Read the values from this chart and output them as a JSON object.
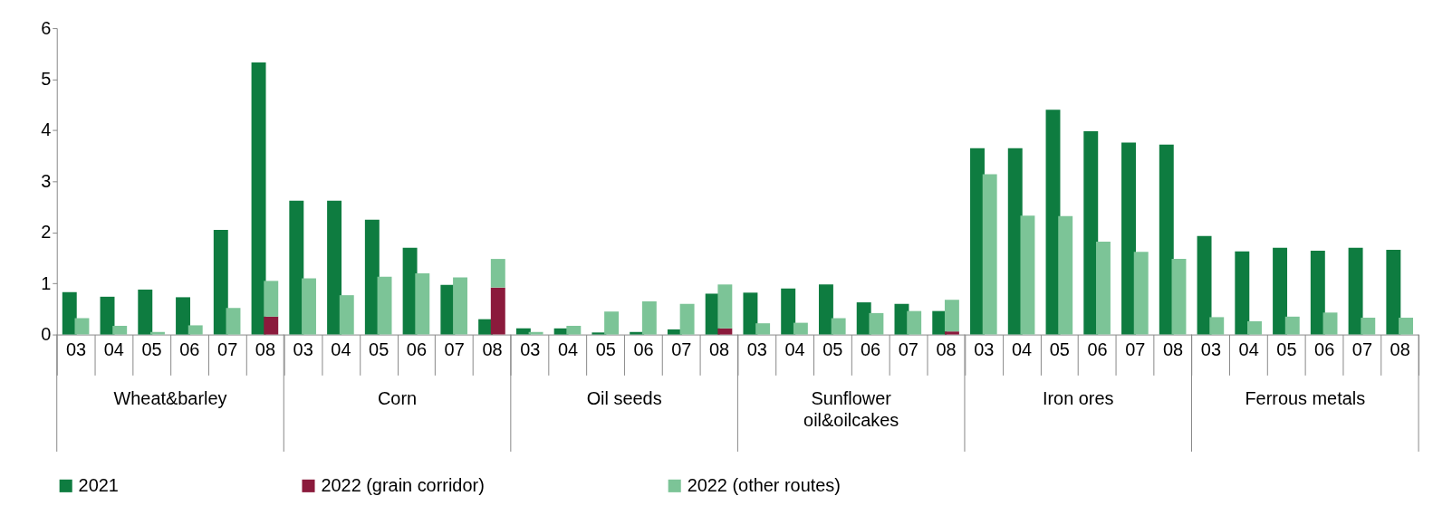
{
  "chart_data": {
    "type": "bar",
    "categories": [
      "03",
      "04",
      "05",
      "06",
      "07",
      "08",
      "03",
      "04",
      "05",
      "06",
      "07",
      "08",
      "03",
      "04",
      "05",
      "06",
      "07",
      "08",
      "03",
      "04",
      "05",
      "06",
      "07",
      "08",
      "03",
      "04",
      "05",
      "06",
      "07",
      "08",
      "03",
      "04",
      "05",
      "06",
      "07",
      "08"
    ],
    "annotations": [
      "Wheat&barley",
      "Corn",
      "Oil seeds",
      "Sunflower oil&oilcakes",
      "Iron ores",
      "Ferrous metals"
    ],
    "series": [
      {
        "name": "2021",
        "color": "#0e7c40",
        "values": [
          0.83,
          0.74,
          0.88,
          0.73,
          2.05,
          5.33,
          2.62,
          2.62,
          2.25,
          1.7,
          0.97,
          0.3,
          0.12,
          0.12,
          0.04,
          0.05,
          0.1,
          0.8,
          0.82,
          0.9,
          0.98,
          0.63,
          0.6,
          0.46,
          3.65,
          3.65,
          4.4,
          3.98,
          3.76,
          3.72,
          1.93,
          1.63,
          1.7,
          1.64,
          1.7,
          1.66
        ]
      },
      {
        "name": "2022 (grain corridor)",
        "color": "#8b1a3c",
        "values": [
          null,
          null,
          null,
          null,
          null,
          0.35,
          null,
          null,
          null,
          null,
          null,
          0.92,
          null,
          null,
          null,
          null,
          null,
          0.12,
          null,
          null,
          null,
          null,
          null,
          0.06,
          null,
          null,
          null,
          null,
          null,
          null,
          null,
          null,
          null,
          null,
          null,
          null
        ]
      },
      {
        "name": "2022 (other routes)",
        "color": "#7cc497",
        "base": [
          0,
          0,
          0,
          0,
          0,
          0.35,
          0,
          0,
          0,
          0,
          0,
          0.92,
          0,
          0,
          0,
          0,
          0,
          0.12,
          0,
          0,
          0,
          0,
          0,
          0.06,
          0,
          0,
          0,
          0,
          0,
          0,
          0,
          0,
          0,
          0,
          0,
          0
        ],
        "values": [
          0.32,
          0.17,
          0.05,
          0.18,
          0.52,
          0.7,
          1.1,
          0.77,
          1.13,
          1.2,
          1.12,
          0.56,
          0.05,
          0.17,
          0.45,
          0.65,
          0.6,
          0.86,
          0.22,
          0.23,
          0.32,
          0.42,
          0.46,
          0.62,
          3.14,
          2.33,
          2.32,
          1.82,
          1.62,
          1.48,
          0.34,
          0.26,
          0.35,
          0.43,
          0.33,
          0.33
        ]
      }
    ],
    "ylim": [
      0,
      6
    ],
    "yticks": [
      0,
      1,
      2,
      3,
      4,
      5,
      6
    ],
    "grid": false,
    "legend": "bottom"
  }
}
